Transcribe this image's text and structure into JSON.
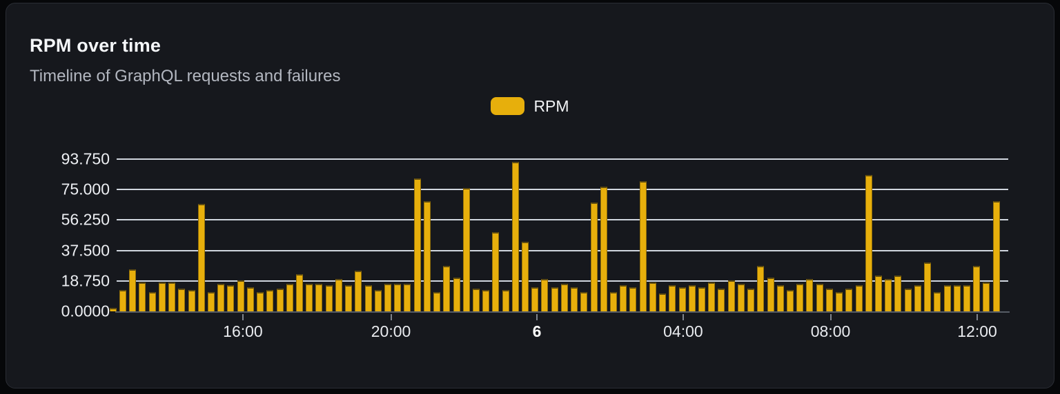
{
  "header": {
    "title": "RPM over time",
    "subtitle": "Timeline of GraphQL requests and failures"
  },
  "legend": {
    "items": [
      {
        "label": "RPM",
        "color": "#E7AF0C"
      }
    ]
  },
  "colors": {
    "bar": "#E7AF0C",
    "bar_edge": "#5E4B10",
    "card_bg": "#16181D",
    "card_border": "#2A2D34",
    "gridline": "#E2E8F0",
    "axis": "#575D66",
    "title_text": "#F5F7FA",
    "subtitle_text": "#B3B7C0"
  },
  "chart_data": {
    "type": "bar",
    "title": "RPM over time",
    "subtitle": "Timeline of GraphQL requests and failures",
    "ylabel": "",
    "xlabel": "",
    "ylim": [
      0,
      93.75
    ],
    "grid": true,
    "legend_position": "top-center",
    "y_ticks": [
      "93.750",
      "75.000",
      "56.250",
      "37.500",
      "18.750",
      "0.0000"
    ],
    "x_ticks": [
      {
        "label": "16:00",
        "pct": 14.16,
        "bold": false
      },
      {
        "label": "20:00",
        "pct": 30.77,
        "bold": false
      },
      {
        "label": "6",
        "pct": 47.14,
        "bold": true
      },
      {
        "label": "04:00",
        "pct": 63.54,
        "bold": false
      },
      {
        "label": "08:00",
        "pct": 80.07,
        "bold": false
      },
      {
        "label": "12:00",
        "pct": 96.52,
        "bold": false
      }
    ],
    "series": [
      {
        "name": "RPM",
        "values": [
          2,
          13,
          26,
          18,
          12,
          18,
          18,
          14,
          13,
          66,
          12,
          17,
          16,
          19,
          15,
          12,
          13,
          14,
          17,
          23,
          17,
          17,
          16,
          20,
          16,
          25,
          16,
          13,
          17,
          17,
          17,
          82,
          68,
          12,
          28,
          21,
          76,
          14,
          13,
          49,
          13,
          92,
          43,
          15,
          20,
          15,
          17,
          15,
          12,
          67,
          77,
          12,
          16,
          15,
          80,
          18,
          11,
          16,
          15,
          16,
          15,
          18,
          14,
          19,
          17,
          14,
          28,
          21,
          16,
          13,
          17,
          20,
          17,
          14,
          12,
          14,
          16,
          84,
          22,
          20,
          22,
          14,
          16,
          30,
          12,
          16,
          16,
          16,
          28,
          18,
          68
        ]
      }
    ]
  }
}
